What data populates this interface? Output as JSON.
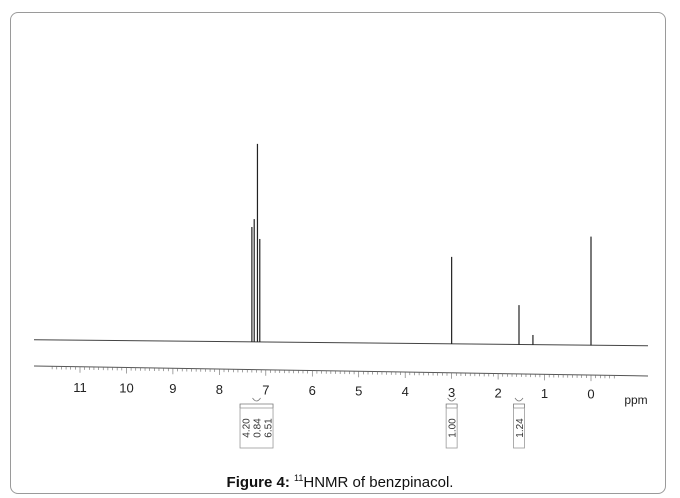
{
  "figure": {
    "label": "Figure 4:",
    "superscript": "11",
    "text": "HNMR of benzpinacol."
  },
  "chart_data": {
    "type": "line",
    "x_unit": "ppm",
    "x_axis_reversed": true,
    "xlim": [
      11.6,
      -0.5
    ],
    "x_ticks": [
      "11",
      "10",
      "9",
      "8",
      "7",
      "6",
      "5",
      "4",
      "3",
      "2",
      "1",
      "0"
    ],
    "peaks": [
      {
        "ppm": 7.3,
        "height": 0.58
      },
      {
        "ppm": 7.25,
        "height": 0.62
      },
      {
        "ppm": 7.18,
        "height": 1.0
      },
      {
        "ppm": 7.13,
        "height": 0.52
      },
      {
        "ppm": 3.0,
        "height": 0.44
      },
      {
        "ppm": 1.55,
        "height": 0.2
      },
      {
        "ppm": 1.25,
        "height": 0.05
      },
      {
        "ppm": 0.0,
        "height": 0.55
      }
    ],
    "integrations": [
      {
        "values": [
          "4.20",
          "0.84",
          "6.51"
        ],
        "ppm": 7.2
      },
      {
        "values": [
          "1.00"
        ],
        "ppm": 3.0
      },
      {
        "values": [
          "1.24"
        ],
        "ppm": 1.55
      }
    ]
  }
}
